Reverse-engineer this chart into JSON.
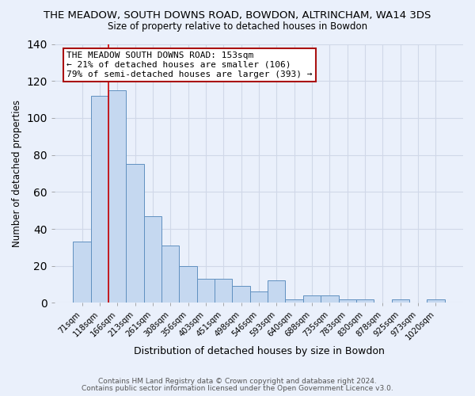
{
  "title": "THE MEADOW, SOUTH DOWNS ROAD, BOWDON, ALTRINCHAM, WA14 3DS",
  "subtitle": "Size of property relative to detached houses in Bowdon",
  "xlabel": "Distribution of detached houses by size in Bowdon",
  "ylabel": "Number of detached properties",
  "bar_labels": [
    "71sqm",
    "118sqm",
    "166sqm",
    "213sqm",
    "261sqm",
    "308sqm",
    "356sqm",
    "403sqm",
    "451sqm",
    "498sqm",
    "546sqm",
    "593sqm",
    "640sqm",
    "688sqm",
    "735sqm",
    "783sqm",
    "830sqm",
    "878sqm",
    "925sqm",
    "973sqm",
    "1020sqm"
  ],
  "bar_values": [
    33,
    112,
    115,
    75,
    47,
    31,
    20,
    13,
    13,
    9,
    6,
    12,
    2,
    4,
    4,
    2,
    2,
    0,
    2,
    0,
    2
  ],
  "bar_color": "#c5d8f0",
  "bar_edge_color": "#6090c0",
  "grid_color": "#d0d8e8",
  "background_color": "#eaf0fb",
  "vline_x_pos": 1.5,
  "vline_color": "#cc0000",
  "annotation_line1": "THE MEADOW SOUTH DOWNS ROAD: 153sqm",
  "annotation_line2": "← 21% of detached houses are smaller (106)",
  "annotation_line3": "79% of semi-detached houses are larger (393) →",
  "annotation_box_color": "white",
  "annotation_box_edge": "#aa1111",
  "ylim": [
    0,
    140
  ],
  "yticks": [
    0,
    20,
    40,
    60,
    80,
    100,
    120,
    140
  ],
  "footnote1": "Contains HM Land Registry data © Crown copyright and database right 2024.",
  "footnote2": "Contains public sector information licensed under the Open Government Licence v3.0."
}
